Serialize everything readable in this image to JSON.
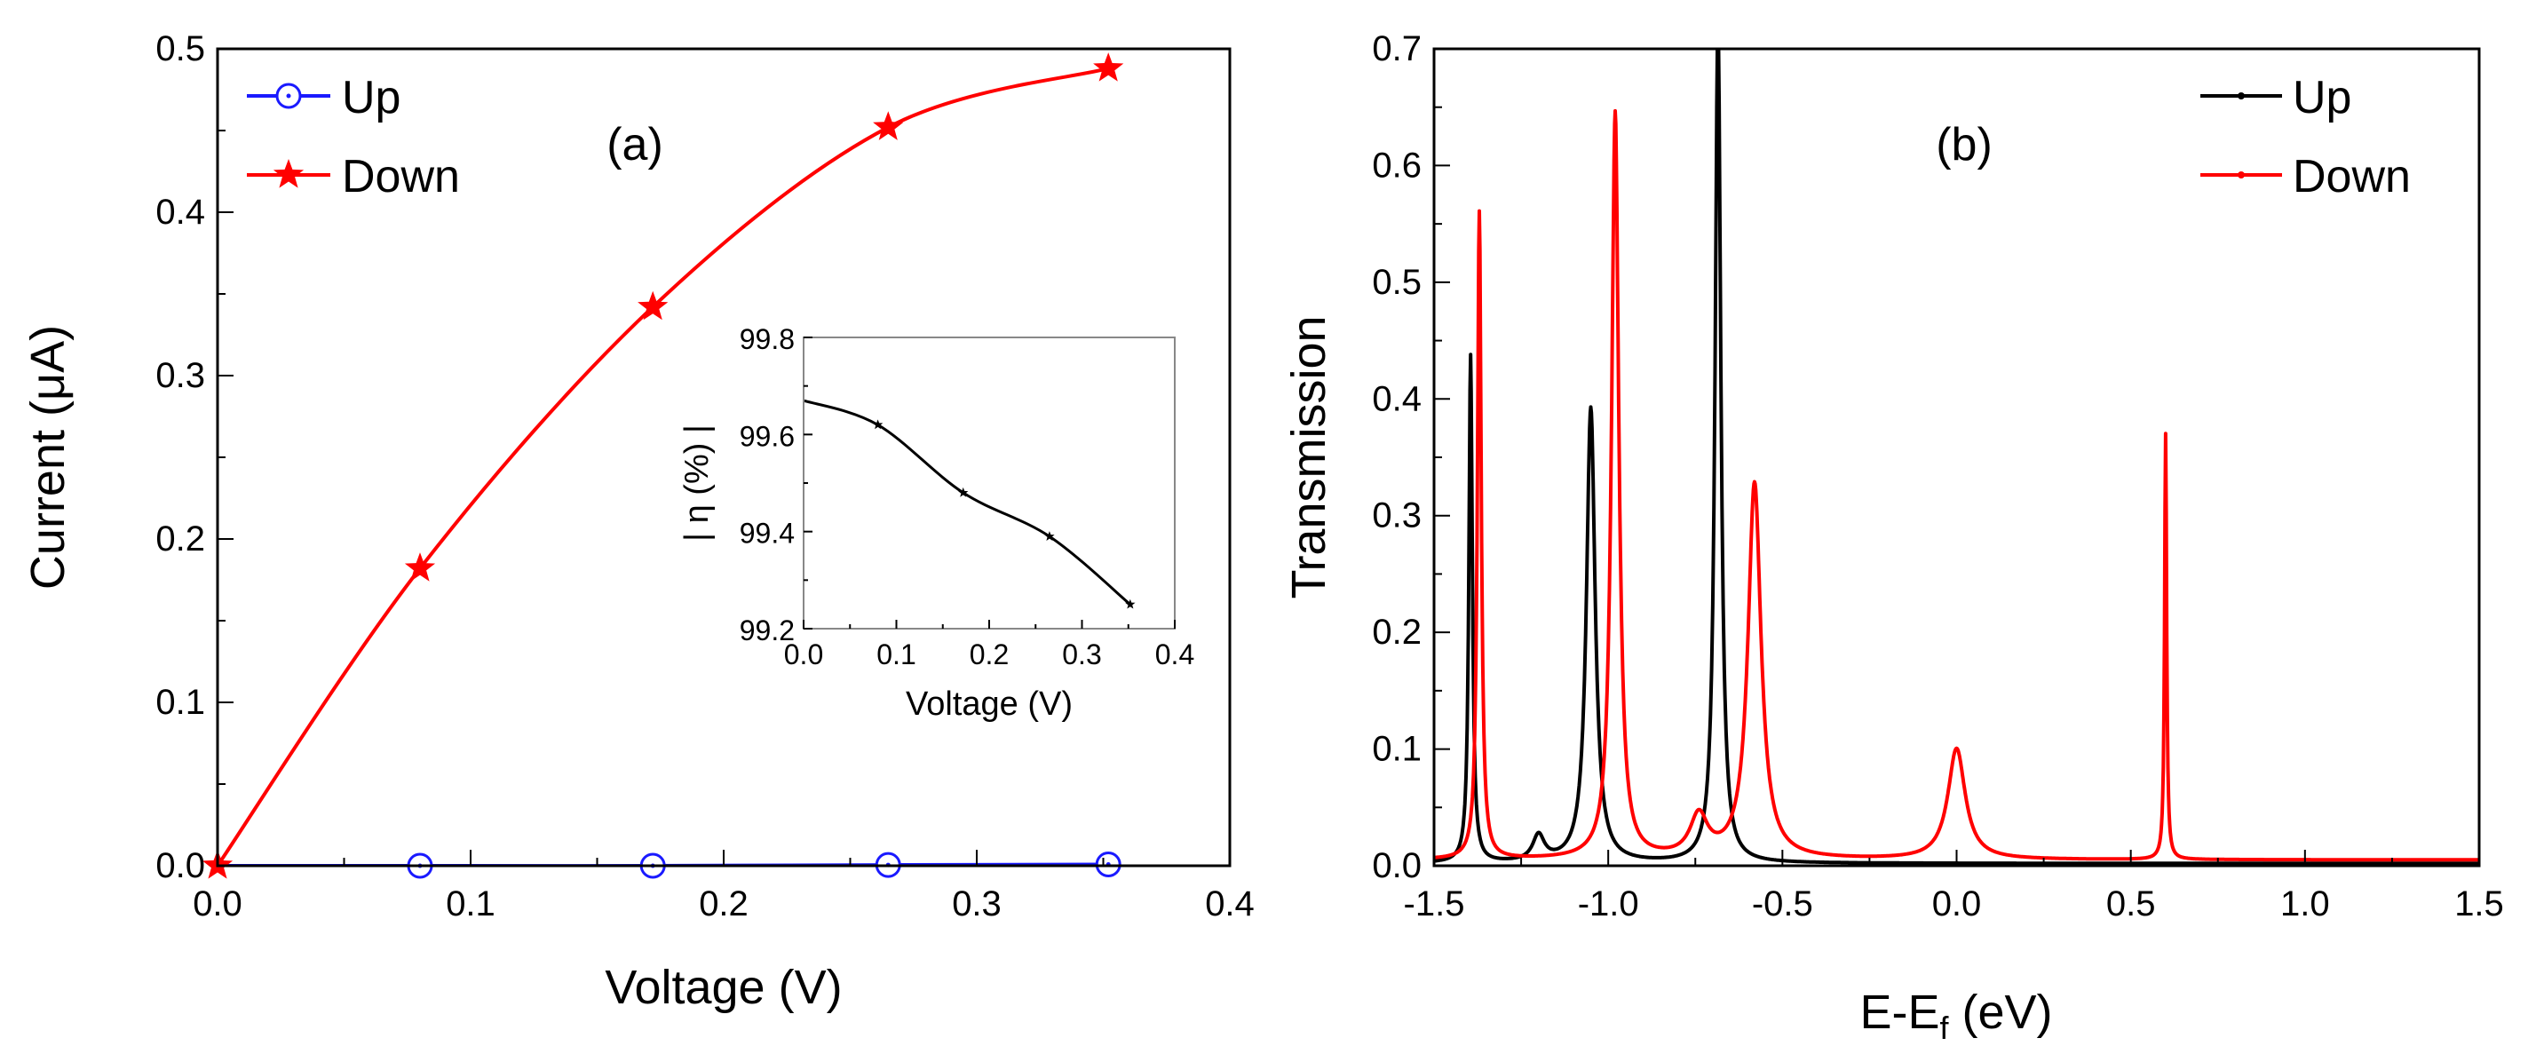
{
  "chart_data": [
    {
      "panel": "(a)",
      "type": "line",
      "xlabel": "Voltage (V)",
      "ylabel": "Current (μA)",
      "xlim": [
        0.0,
        0.4
      ],
      "ylim": [
        0.0,
        0.5
      ],
      "xticks": [
        "0.0",
        "0.1",
        "0.2",
        "0.3",
        "0.4"
      ],
      "yticks": [
        "0.0",
        "0.1",
        "0.2",
        "0.3",
        "0.4",
        "0.5"
      ],
      "series": [
        {
          "name": "Up",
          "color": "#1a1aff",
          "marker": "open-circle",
          "x": [
            0.0,
            0.08,
            0.172,
            0.265,
            0.352
          ],
          "y": [
            0.0,
            0.0,
            0.0,
            0.0005,
            0.0008
          ]
        },
        {
          "name": "Down",
          "color": "#ff0000",
          "marker": "star",
          "x": [
            0.0,
            0.08,
            0.172,
            0.265,
            0.352
          ],
          "y": [
            0.0,
            0.182,
            0.342,
            0.452,
            0.488
          ]
        }
      ],
      "legend": [
        "Up",
        "Down"
      ],
      "legend_position": "top-left",
      "inset": {
        "type": "line",
        "xlabel": "Voltage (V)",
        "ylabel": "| η (%) |",
        "xlim": [
          0.0,
          0.4
        ],
        "ylim": [
          99.2,
          99.8
        ],
        "xticks": [
          "0.0",
          "0.1",
          "0.2",
          "0.3",
          "0.4"
        ],
        "yticks": [
          "99.2",
          "99.4",
          "99.6",
          "99.8"
        ],
        "color": "#000000",
        "x": [
          0.0,
          0.08,
          0.172,
          0.265,
          0.352
        ],
        "y": [
          99.67,
          99.62,
          99.48,
          99.39,
          99.25
        ]
      }
    },
    {
      "panel": "(b)",
      "type": "line",
      "xlabel": "E-E",
      "xlabel_sub": "f",
      "xlabel_unit": " (eV)",
      "ylabel": "Transmission",
      "xlim": [
        -1.5,
        1.5
      ],
      "ylim": [
        0.0,
        0.7
      ],
      "xticks": [
        "-1.5",
        "-1.0",
        "-0.5",
        "0.0",
        "0.5",
        "1.0",
        "1.5"
      ],
      "yticks": [
        "0.0",
        "0.1",
        "0.2",
        "0.3",
        "0.4",
        "0.5",
        "0.6",
        "0.7"
      ],
      "legend": [
        "Up",
        "Down"
      ],
      "legend_position": "top-right",
      "series": [
        {
          "name": "Up",
          "color": "#000000",
          "background": 0.002,
          "peaks": [
            {
              "E": -1.395,
              "height": 0.435,
              "width": 0.012
            },
            {
              "E": -1.2,
              "height": 0.022,
              "width": 0.04
            },
            {
              "E": -1.05,
              "height": 0.39,
              "width": 0.03
            },
            {
              "E": -0.685,
              "height": 0.72,
              "width": 0.02
            }
          ]
        },
        {
          "name": "Down",
          "color": "#ff0000",
          "background": 0.005,
          "peaks": [
            {
              "E": -1.37,
              "height": 0.555,
              "width": 0.013
            },
            {
              "E": -0.98,
              "height": 0.64,
              "width": 0.025
            },
            {
              "E": -0.74,
              "height": 0.035,
              "width": 0.06
            },
            {
              "E": -0.58,
              "height": 0.322,
              "width": 0.045
            },
            {
              "E": 0.0,
              "height": 0.095,
              "width": 0.06
            },
            {
              "E": 0.6,
              "height": 0.365,
              "width": 0.007
            }
          ]
        }
      ]
    }
  ]
}
